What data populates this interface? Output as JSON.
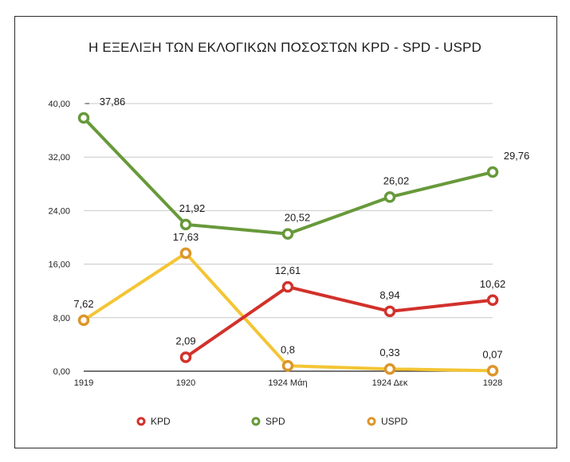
{
  "colors": {
    "kpd": "#d2312b",
    "spd": "#67993a",
    "uspd": "#f4c534",
    "uspd_marker": "#dd962a",
    "grid": "#c8c8c8",
    "axis": "#222222"
  },
  "chart_data": {
    "type": "line",
    "title": "Η ΕΞΕΛΙΞΗ ΤΩΝ ΕΚΛΟΓΙΚΩΝ ΠΟΣΟΣΤΩΝ KPD - SPD - USPD",
    "categories": [
      "1919",
      "1920",
      "1924 Μάη",
      "1924 Δεκ",
      "1928"
    ],
    "y_ticks": [
      "0,00",
      "8,00",
      "16,00",
      "24,00",
      "32,00",
      "40,00"
    ],
    "y_tick_values": [
      0,
      8,
      16,
      24,
      32,
      40
    ],
    "ylim": [
      0,
      40
    ],
    "xlabel": "",
    "ylabel": "",
    "grid": true,
    "legend_position": "bottom",
    "series": [
      {
        "name": "KPD",
        "values": [
          null,
          2.09,
          12.61,
          8.94,
          10.62
        ],
        "labels": [
          "",
          "2,09",
          "12,61",
          "8,94",
          "10,62"
        ]
      },
      {
        "name": "SPD",
        "values": [
          37.86,
          21.92,
          20.52,
          26.02,
          29.76
        ],
        "labels": [
          "37,86",
          "21,92",
          "20,52",
          "26,02",
          "29,76"
        ]
      },
      {
        "name": "USPD",
        "values": [
          7.62,
          17.63,
          0.8,
          0.33,
          0.07
        ],
        "labels": [
          "7,62",
          "17,63",
          "0,8",
          "0,33",
          "0,07"
        ]
      }
    ]
  }
}
